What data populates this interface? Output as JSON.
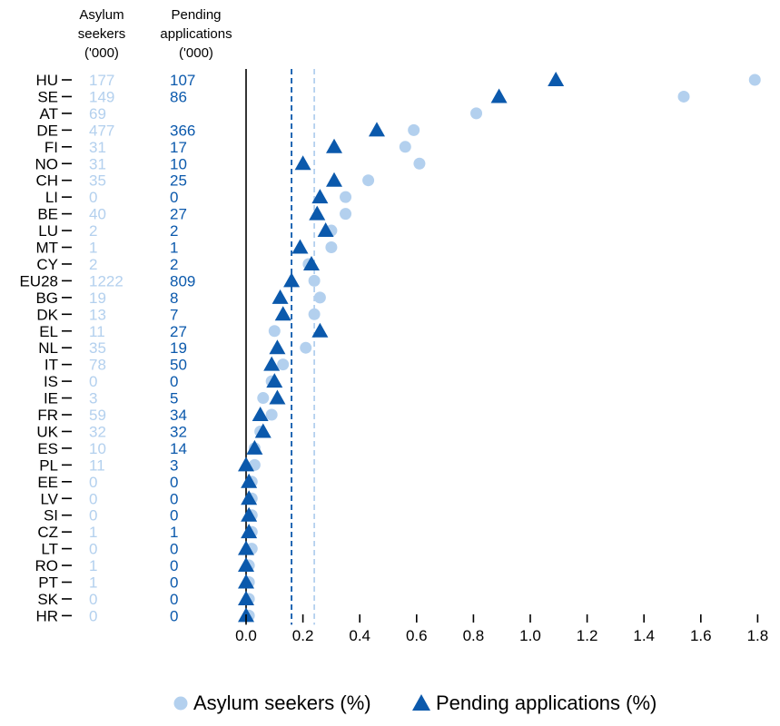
{
  "colors": {
    "light": "#b3d0ee",
    "dark": "#0b59ac",
    "axis": "#000000"
  },
  "headers": {
    "asylum": [
      "Asylum",
      "seekers",
      "('000)"
    ],
    "pending": [
      "Pending",
      "applications",
      "('000)"
    ]
  },
  "chart_data": {
    "type": "scatter",
    "orientation": "horizontal-dot-plot",
    "categories": [
      "HU",
      "SE",
      "AT",
      "DE",
      "FI",
      "NO",
      "CH",
      "LI",
      "BE",
      "LU",
      "MT",
      "CY",
      "EU28",
      "BG",
      "DK",
      "EL",
      "NL",
      "IT",
      "IS",
      "IE",
      "FR",
      "UK",
      "ES",
      "PL",
      "EE",
      "LV",
      "SI",
      "CZ",
      "LT",
      "RO",
      "PT",
      "SK",
      "HR"
    ],
    "asylum_seekers_thousands": [
      "177",
      "149",
      "69",
      "477",
      "31",
      "31",
      "35",
      "0",
      "40",
      "2",
      "1",
      "2",
      "1222",
      "19",
      "13",
      "11",
      "35",
      "78",
      "0",
      "3",
      "59",
      "32",
      "10",
      "11",
      "0",
      "0",
      "0",
      "1",
      "0",
      "1",
      "1",
      "0",
      "0"
    ],
    "pending_applications_thousands": [
      "107",
      "86",
      "",
      "366",
      "17",
      "10",
      "25",
      "0",
      "27",
      "2",
      "1",
      "2",
      "809",
      "8",
      "7",
      "27",
      "19",
      "50",
      "0",
      "5",
      "34",
      "32",
      "14",
      "3",
      "0",
      "0",
      "0",
      "1",
      "0",
      "0",
      "0",
      "0",
      "0"
    ],
    "series": [
      {
        "name": "Asylum seekers (%)",
        "marker": "circle",
        "color": "#b3d0ee",
        "values": [
          1.79,
          1.54,
          0.81,
          0.59,
          0.56,
          0.61,
          0.43,
          0.35,
          0.35,
          0.3,
          0.3,
          0.22,
          0.24,
          0.26,
          0.24,
          0.1,
          0.21,
          0.13,
          0.09,
          0.06,
          0.09,
          0.05,
          0.03,
          0.03,
          0.02,
          0.02,
          0.02,
          0.02,
          0.02,
          0.01,
          0.01,
          0.01,
          0.01
        ],
        "reference_line": 0.24
      },
      {
        "name": "Pending applications (%)",
        "marker": "triangle",
        "color": "#0b59ac",
        "values": [
          1.09,
          0.89,
          null,
          0.46,
          0.31,
          0.2,
          0.31,
          0.26,
          0.25,
          0.28,
          0.19,
          0.23,
          0.16,
          0.12,
          0.13,
          0.26,
          0.11,
          0.09,
          0.1,
          0.11,
          0.05,
          0.06,
          0.03,
          0.0,
          0.01,
          0.01,
          0.01,
          0.01,
          0.0,
          0.0,
          0.0,
          0.0,
          0.0
        ],
        "reference_line": 0.16
      }
    ],
    "xlim": [
      0,
      1.8
    ],
    "xticks": [
      "0.0",
      "0.2",
      "0.4",
      "0.6",
      "0.8",
      "1.0",
      "1.2",
      "1.4",
      "1.6",
      "1.8"
    ],
    "grid": false,
    "legend_position": "bottom"
  }
}
